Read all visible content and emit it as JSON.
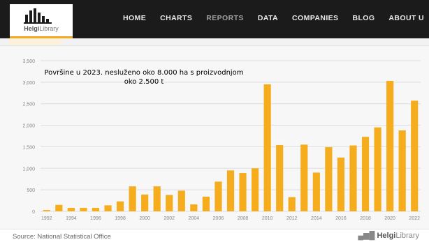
{
  "header": {
    "logo_text": "Helgi",
    "logo_text_suffix": "Library",
    "nav": [
      "HOME",
      "CHARTS",
      "REPORTS",
      "DATA",
      "COMPANIES",
      "BLOG",
      "ABOUT U"
    ],
    "active_nav": "REPORTS"
  },
  "annotation": "Površine u 2023. nesluženo oko 8.000 ha s proizvodnjom oko 2.500 t",
  "footer": {
    "source": "Source: National Statistical Office",
    "brand": "Helgi",
    "brand_suffix": "Library"
  },
  "colors": {
    "bar": "#f5ac1d",
    "nav_bg": "#1b1b1b",
    "grid": "#dddddd",
    "accent": "#f5a623"
  },
  "chart_data": {
    "type": "bar",
    "categories": [
      "1992",
      "1993",
      "1994",
      "1995",
      "1996",
      "1997",
      "1998",
      "1999",
      "2000",
      "2001",
      "2002",
      "2003",
      "2004",
      "2005",
      "2006",
      "2007",
      "2008",
      "2009",
      "2010",
      "2011",
      "2012",
      "2013",
      "2014",
      "2015",
      "2016",
      "2017",
      "2018",
      "2019",
      "2020",
      "2021",
      "2022"
    ],
    "x_tick_labels": [
      "1992",
      "",
      "1994",
      "",
      "1996",
      "",
      "1998",
      "",
      "2000",
      "",
      "2002",
      "",
      "2004",
      "",
      "2006",
      "",
      "2008",
      "",
      "2010",
      "",
      "2012",
      "",
      "2014",
      "",
      "2016",
      "",
      "2018",
      "",
      "2020",
      "",
      "2022"
    ],
    "values": [
      30,
      150,
      80,
      80,
      80,
      140,
      230,
      580,
      390,
      580,
      380,
      480,
      160,
      340,
      690,
      950,
      890,
      1000,
      2950,
      1540,
      330,
      1550,
      900,
      1490,
      1250,
      1530,
      1730,
      1950,
      3030,
      1880,
      2570
    ],
    "ylim": [
      0,
      3500
    ],
    "y_ticks": [
      0,
      500,
      1000,
      1500,
      2000,
      2500,
      3000,
      3500
    ],
    "y_tick_labels": [
      "0",
      "500",
      "1,000",
      "1,500",
      "2,000",
      "2,500",
      "3,000",
      "3,500"
    ],
    "grid": true,
    "title": "",
    "xlabel": "",
    "ylabel": ""
  }
}
